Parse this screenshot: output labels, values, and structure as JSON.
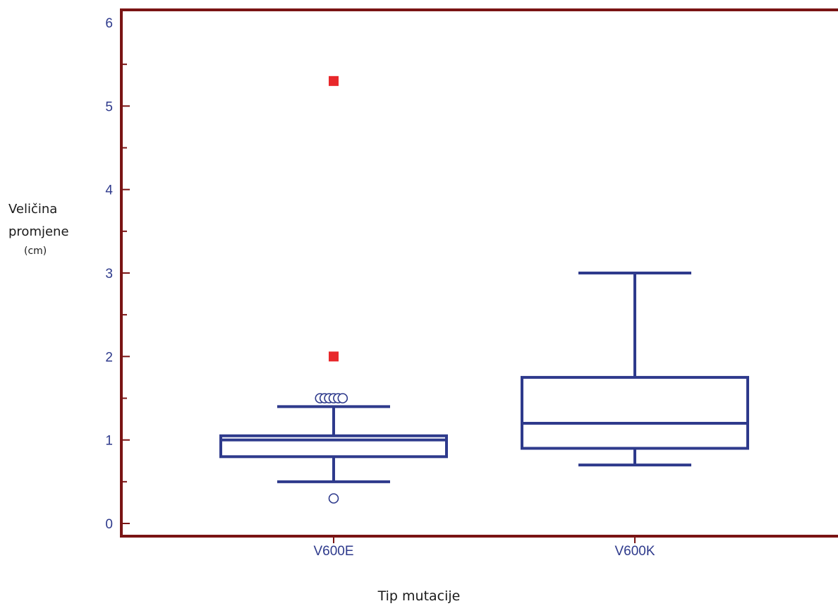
{
  "chart_data": {
    "type": "boxplot",
    "xlabel": "Tip mutacije",
    "ylabel_lines": [
      "Veličina",
      "promjene",
      "(cm)"
    ],
    "ylim": [
      0,
      6
    ],
    "yticks": [
      0,
      1,
      2,
      3,
      4,
      5,
      6
    ],
    "categories": [
      "V600E",
      "V600K"
    ],
    "boxes": [
      {
        "category": "V600E",
        "whisker_low": 0.5,
        "q1": 0.8,
        "median": 1.0,
        "q3": 1.05,
        "whisker_high": 1.4,
        "outliers": [
          {
            "x_offset": -0.045,
            "value": 1.5
          },
          {
            "x_offset": -0.03,
            "value": 1.5
          },
          {
            "x_offset": -0.015,
            "value": 1.5
          },
          {
            "x_offset": 0.0,
            "value": 1.5
          },
          {
            "x_offset": 0.015,
            "value": 1.5
          },
          {
            "x_offset": 0.03,
            "value": 1.5
          },
          {
            "x_offset": 0.0,
            "value": 0.3
          }
        ],
        "extreme_outliers": [
          2.0,
          5.3
        ]
      },
      {
        "category": "V600K",
        "whisker_low": 0.7,
        "q1": 0.9,
        "median": 1.2,
        "q3": 1.75,
        "whisker_high": 3.0,
        "outliers": [],
        "extreme_outliers": []
      }
    ],
    "colors": {
      "box": "#2e3a8c",
      "frame": "#7a1414",
      "extreme_outlier": "#e8282b",
      "tick_label": "#2e3a8c"
    }
  }
}
